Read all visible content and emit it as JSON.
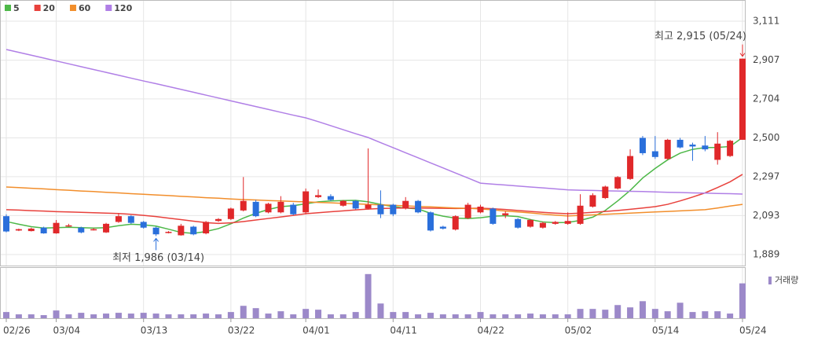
{
  "chart_data": {
    "type": "candlestick",
    "categories": [
      "02/26",
      null,
      null,
      null,
      "03/04",
      null,
      null,
      null,
      null,
      null,
      null,
      "03/13",
      null,
      null,
      null,
      null,
      null,
      null,
      "03/22",
      null,
      null,
      null,
      null,
      null,
      "04/01",
      null,
      null,
      null,
      null,
      null,
      null,
      "04/11",
      null,
      null,
      null,
      null,
      null,
      null,
      "04/22",
      null,
      null,
      null,
      null,
      null,
      null,
      "05/02",
      null,
      null,
      null,
      null,
      null,
      null,
      "05/14",
      null,
      null,
      null,
      null,
      null,
      null,
      "05/24"
    ],
    "open": [
      2090,
      2015,
      2012,
      2030,
      2000,
      2040,
      2030,
      2020,
      2005,
      2060,
      2090,
      2060,
      2030,
      2005,
      1990,
      2035,
      2000,
      2065,
      2075,
      2120,
      2165,
      2110,
      2110,
      2150,
      2110,
      2190,
      2195,
      2145,
      2170,
      2130,
      2150,
      2150,
      2130,
      2170,
      2110,
      2035,
      2020,
      2080,
      2110,
      2130,
      2095,
      2075,
      2035,
      2030,
      2050,
      2050,
      2050,
      2140,
      2185,
      2235,
      2285,
      2500,
      2430,
      2390,
      2490,
      2465,
      2460,
      2385,
      2405,
      2490
    ],
    "close": [
      2010,
      2022,
      2025,
      2000,
      2055,
      2042,
      2005,
      2022,
      2050,
      2090,
      2055,
      2030,
      1995,
      2008,
      2040,
      1995,
      2060,
      2075,
      2130,
      2170,
      2090,
      2155,
      2165,
      2100,
      2220,
      2200,
      2175,
      2170,
      2130,
      2150,
      2100,
      2100,
      2170,
      2110,
      2015,
      2025,
      2090,
      2150,
      2140,
      2050,
      2105,
      2030,
      2070,
      2055,
      2060,
      2065,
      2145,
      2200,
      2245,
      2295,
      2405,
      2420,
      2400,
      2490,
      2450,
      2455,
      2440,
      2470,
      2485,
      2915
    ],
    "high": [
      2100,
      2025,
      2030,
      2035,
      2070,
      2050,
      2035,
      2028,
      2055,
      2105,
      2095,
      2065,
      2035,
      2012,
      2050,
      2040,
      2065,
      2080,
      2135,
      2295,
      2175,
      2160,
      2195,
      2160,
      2235,
      2230,
      2205,
      2175,
      2175,
      2445,
      2225,
      2155,
      2190,
      2175,
      2115,
      2040,
      2095,
      2160,
      2150,
      2135,
      2115,
      2080,
      2075,
      2060,
      2065,
      2110,
      2205,
      2210,
      2250,
      2300,
      2440,
      2510,
      2510,
      2495,
      2500,
      2475,
      2510,
      2530,
      2490,
      2915
    ],
    "low": [
      2005,
      2012,
      2010,
      1998,
      1998,
      2035,
      2000,
      2015,
      2002,
      2055,
      2050,
      2025,
      1986,
      2000,
      1988,
      1990,
      1995,
      2060,
      2070,
      2115,
      2085,
      2105,
      2105,
      2095,
      2100,
      2185,
      2170,
      2140,
      2125,
      2125,
      2080,
      2090,
      2125,
      2105,
      2010,
      2020,
      2015,
      2075,
      2105,
      2045,
      2080,
      2025,
      2030,
      2025,
      2045,
      2045,
      2045,
      2135,
      2180,
      2230,
      2280,
      2410,
      2390,
      2385,
      2445,
      2380,
      2430,
      2360,
      2400,
      2490
    ],
    "up_color": "#e0282a",
    "down_color": "#2a6fdb",
    "series": [
      {
        "name": "5",
        "color": "#4db848",
        "values": [
          2062,
          2048,
          2035,
          2028,
          2030,
          2032,
          2030,
          2028,
          2030,
          2040,
          2048,
          2045,
          2038,
          2022,
          2005,
          2000,
          2010,
          2025,
          2050,
          2080,
          2105,
          2125,
          2140,
          2145,
          2155,
          2165,
          2170,
          2172,
          2173,
          2165,
          2152,
          2140,
          2133,
          2128,
          2105,
          2090,
          2080,
          2078,
          2082,
          2090,
          2092,
          2088,
          2072,
          2060,
          2056,
          2057,
          2068,
          2085,
          2120,
          2170,
          2225,
          2290,
          2340,
          2385,
          2420,
          2440,
          2449,
          2450,
          2455,
          2502
        ]
      },
      {
        "name": "20",
        "color": "#e8413c",
        "values": [
          2124,
          2122,
          2119,
          2117,
          2114,
          2112,
          2110,
          2108,
          2106,
          2104,
          2100,
          2094,
          2088,
          2080,
          2072,
          2064,
          2056,
          2052,
          2055,
          2062,
          2070,
          2078,
          2086,
          2094,
          2103,
          2108,
          2113,
          2118,
          2123,
          2127,
          2130,
          2132,
          2133,
          2133,
          2132,
          2131,
          2130,
          2131,
          2132,
          2129,
          2125,
          2120,
          2115,
          2110,
          2106,
          2103,
          2106,
          2110,
          2115,
          2120,
          2126,
          2133,
          2140,
          2152,
          2170,
          2190,
          2212,
          2240,
          2270,
          2309
        ]
      },
      {
        "name": "60",
        "color": "#f28e2b",
        "values": [
          2243,
          2240,
          2236,
          2233,
          2229,
          2226,
          2222,
          2219,
          2215,
          2212,
          2208,
          2205,
          2201,
          2198,
          2194,
          2191,
          2187,
          2184,
          2180,
          2177,
          2175,
          2172,
          2170,
          2167,
          2165,
          2162,
          2160,
          2157,
          2155,
          2152,
          2149,
          2147,
          2144,
          2141,
          2139,
          2136,
          2133,
          2131,
          2128,
          2123,
          2117,
          2112,
          2107,
          2101,
          2096,
          2091,
          2094,
          2097,
          2100,
          2103,
          2106,
          2109,
          2112,
          2115,
          2118,
          2121,
          2124,
          2133,
          2143,
          2152
        ]
      },
      {
        "name": "120",
        "color": "#b07fe6",
        "values": [
          2963,
          2948,
          2933,
          2918,
          2903,
          2888,
          2873,
          2858,
          2843,
          2828,
          2813,
          2798,
          2784,
          2769,
          2754,
          2739,
          2724,
          2709,
          2694,
          2679,
          2664,
          2649,
          2634,
          2619,
          2605,
          2585,
          2564,
          2543,
          2522,
          2502,
          2475,
          2449,
          2422,
          2396,
          2369,
          2343,
          2316,
          2290,
          2263,
          2258,
          2253,
          2248,
          2243,
          2238,
          2233,
          2228,
          2226,
          2225,
          2223,
          2222,
          2220,
          2219,
          2217,
          2215,
          2214,
          2212,
          2211,
          2209,
          2208,
          2206
        ]
      }
    ],
    "volume": {
      "name": "거래량",
      "color": "#9c89c9",
      "values": [
        8,
        5,
        5,
        4,
        10,
        5,
        7,
        5,
        6,
        7,
        6,
        7,
        6,
        5,
        5,
        5,
        6,
        5,
        8,
        16,
        13,
        6,
        9,
        5,
        12,
        11,
        5,
        5,
        8,
        57,
        19,
        8,
        8,
        5,
        7,
        5,
        5,
        5,
        8,
        5,
        5,
        5,
        6,
        5,
        5,
        5,
        12,
        12,
        11,
        17,
        14,
        22,
        12,
        9,
        20,
        8,
        9,
        9,
        6,
        45
      ]
    },
    "ylim": [
      1889,
      3111
    ],
    "yticks": [
      {
        "value": 3111,
        "label": "3,111"
      },
      {
        "value": 2907,
        "label": "2,907"
      },
      {
        "value": 2704,
        "label": "2,704"
      },
      {
        "value": 2500,
        "label": "2,500"
      },
      {
        "value": 2297,
        "label": "2,297"
      },
      {
        "value": 2093,
        "label": "2,093"
      },
      {
        "value": 1889,
        "label": "1,889"
      }
    ],
    "annotations": [
      {
        "text": "최고 2,915 (05/24)",
        "color": "#e0282a"
      },
      {
        "text": "최저 1,986 (03/14)",
        "color": "#2a6fdb"
      }
    ],
    "grid": true
  }
}
